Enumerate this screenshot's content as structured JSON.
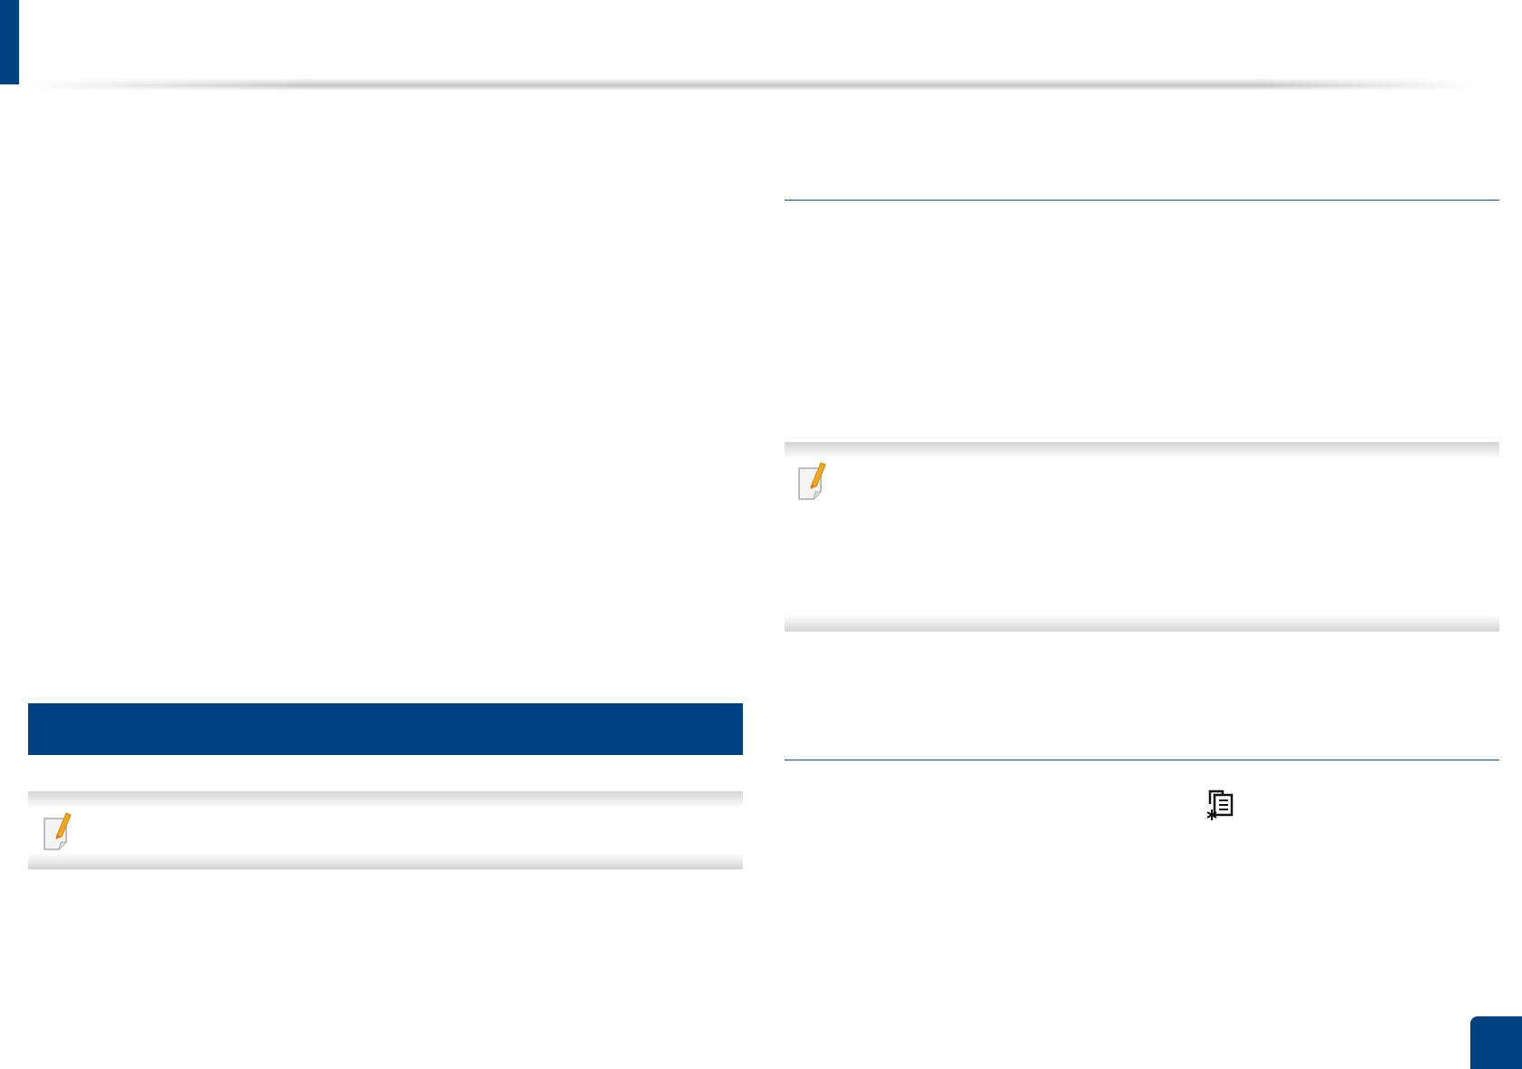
{
  "colors": {
    "accent": "#00427f",
    "note_gradient": "#d4d4d4",
    "rule": "#1f4f8a"
  },
  "icons": {
    "note": "note-pencil-icon",
    "menu": "menu-copy-settings-icon"
  }
}
